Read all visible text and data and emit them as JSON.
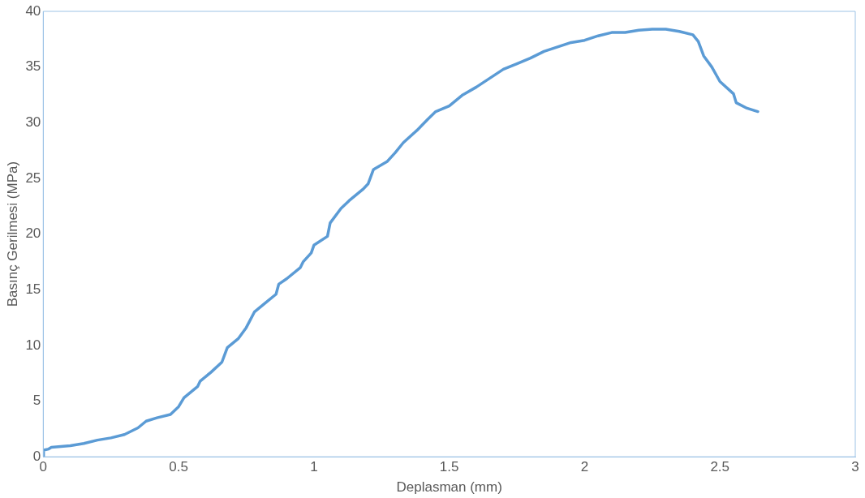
{
  "chart_data": {
    "type": "line",
    "xlabel": "Deplasman (mm)",
    "ylabel": "Basınç Gerilmesi (MPa)",
    "xlim": [
      0,
      3
    ],
    "xticks": [
      0,
      0.5,
      1,
      1.5,
      2,
      2.5,
      3
    ],
    "ylim": [
      0,
      40
    ],
    "yticks": [
      0,
      5,
      10,
      15,
      20,
      25,
      30,
      35,
      40
    ],
    "grid": false,
    "legend": false,
    "marker": "none",
    "line_style": "solid",
    "series": [
      {
        "color": "#5b9bd5",
        "x": [
          0,
          0.001,
          0.02,
          0.03,
          0.1,
          0.15,
          0.2,
          0.25,
          0.3,
          0.35,
          0.38,
          0.42,
          0.47,
          0.5,
          0.52,
          0.57,
          0.58,
          0.62,
          0.66,
          0.68,
          0.72,
          0.75,
          0.78,
          0.82,
          0.86,
          0.87,
          0.9,
          0.95,
          0.96,
          0.99,
          1.0,
          1.05,
          1.06,
          1.1,
          1.13,
          1.18,
          1.2,
          1.22,
          1.27,
          1.3,
          1.33,
          1.38,
          1.42,
          1.45,
          1.5,
          1.55,
          1.6,
          1.65,
          1.7,
          1.75,
          1.8,
          1.85,
          1.9,
          1.95,
          2.0,
          2.05,
          2.1,
          2.15,
          2.2,
          2.25,
          2.3,
          2.35,
          2.4,
          2.42,
          2.44,
          2.47,
          2.5,
          2.55,
          2.56,
          2.6,
          2.64
        ],
        "values": [
          0,
          0.6,
          0.7,
          0.85,
          1.0,
          1.2,
          1.5,
          1.7,
          2.0,
          2.6,
          3.2,
          3.5,
          3.8,
          4.5,
          5.3,
          6.3,
          6.8,
          7.6,
          8.5,
          9.8,
          10.6,
          11.6,
          13.0,
          13.8,
          14.6,
          15.5,
          16.0,
          17.0,
          17.5,
          18.3,
          19.0,
          19.8,
          21.0,
          22.3,
          23.0,
          24.0,
          24.5,
          25.8,
          26.5,
          27.3,
          28.2,
          29.3,
          30.3,
          31.0,
          31.5,
          32.5,
          33.2,
          34.0,
          34.8,
          35.3,
          35.8,
          36.4,
          36.8,
          37.2,
          37.4,
          37.8,
          38.1,
          38.1,
          38.3,
          38.4,
          38.4,
          38.2,
          37.9,
          37.3,
          36.0,
          35.0,
          33.7,
          32.6,
          31.8,
          31.3,
          31.0
        ]
      }
    ]
  }
}
